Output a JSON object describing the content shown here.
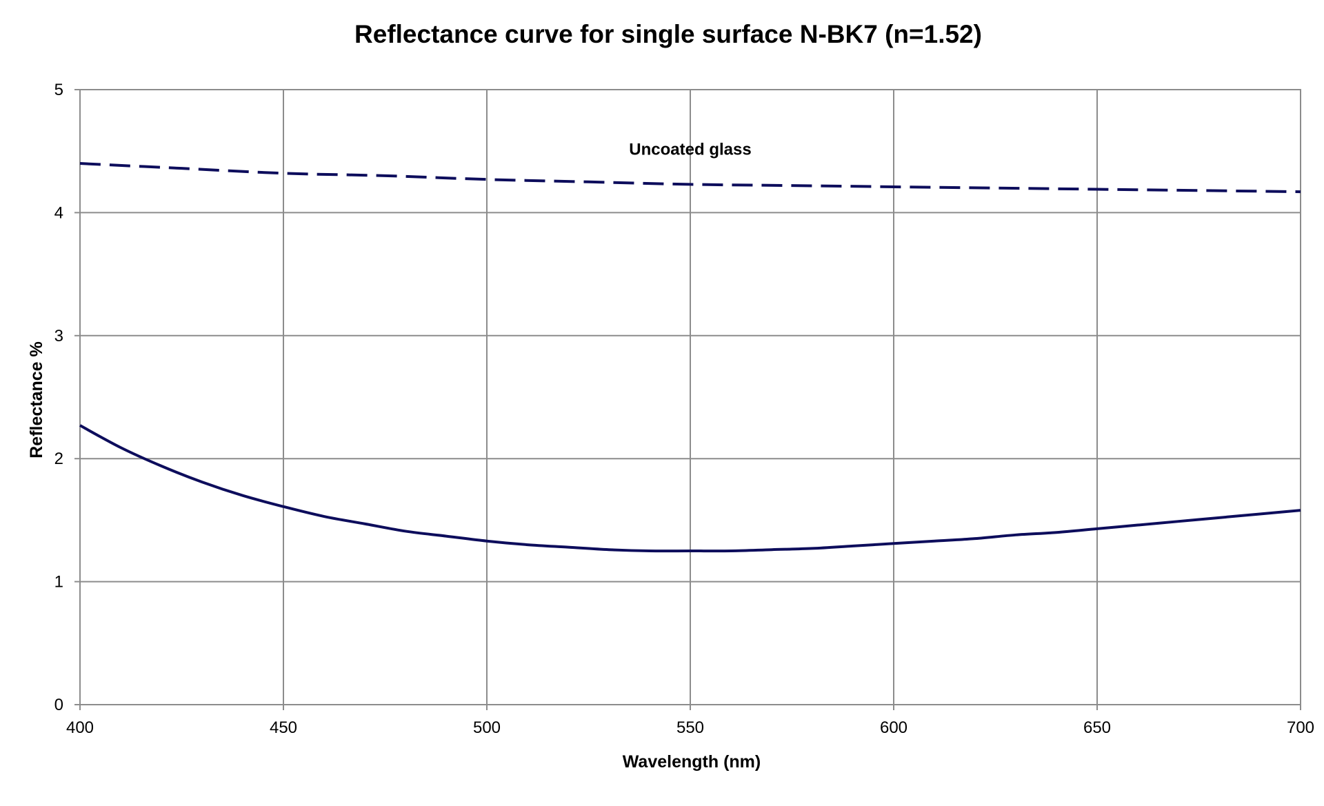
{
  "chart_data": {
    "type": "line",
    "title": "Reflectance curve for single surface N-BK7 (n=1.52)",
    "xlabel": "Wavelength (nm)",
    "ylabel": "Reflectance %",
    "xlim": [
      400,
      700
    ],
    "ylim": [
      0,
      5
    ],
    "x_ticks": [
      {
        "value": 400,
        "label": "400"
      },
      {
        "value": 450,
        "label": "450"
      },
      {
        "value": 500,
        "label": "500"
      },
      {
        "value": 550,
        "label": "550"
      },
      {
        "value": 600,
        "label": "600"
      },
      {
        "value": 650,
        "label": "650"
      },
      {
        "value": 700,
        "label": "700"
      }
    ],
    "y_ticks": [
      {
        "value": 0,
        "label": "0"
      },
      {
        "value": 1,
        "label": "1"
      },
      {
        "value": 2,
        "label": "2"
      },
      {
        "value": 3,
        "label": "3"
      },
      {
        "value": 4,
        "label": "4"
      },
      {
        "value": 5,
        "label": "5"
      }
    ],
    "grid": true,
    "legend": "none",
    "series": [
      {
        "style": "dashed",
        "color": "#0d0d5c",
        "annotation": {
          "text": "Uncoated glass",
          "x": 550,
          "y": 4.47
        },
        "x": [
          400,
          425,
          450,
          475,
          500,
          525,
          550,
          575,
          600,
          625,
          650,
          675,
          700
        ],
        "y": [
          4.4,
          4.36,
          4.32,
          4.3,
          4.27,
          4.25,
          4.23,
          4.22,
          4.21,
          4.2,
          4.19,
          4.18,
          4.17
        ]
      },
      {
        "style": "solid",
        "color": "#0d0d5c",
        "x": [
          400,
          410,
          420,
          430,
          440,
          450,
          460,
          470,
          480,
          490,
          500,
          510,
          520,
          530,
          540,
          550,
          560,
          570,
          580,
          590,
          600,
          610,
          620,
          630,
          640,
          650,
          660,
          670,
          680,
          690,
          700
        ],
        "y": [
          2.27,
          2.09,
          1.94,
          1.81,
          1.7,
          1.61,
          1.53,
          1.47,
          1.41,
          1.37,
          1.33,
          1.3,
          1.28,
          1.26,
          1.25,
          1.25,
          1.25,
          1.26,
          1.27,
          1.29,
          1.31,
          1.33,
          1.35,
          1.38,
          1.4,
          1.43,
          1.46,
          1.49,
          1.52,
          1.55,
          1.58
        ]
      }
    ]
  }
}
